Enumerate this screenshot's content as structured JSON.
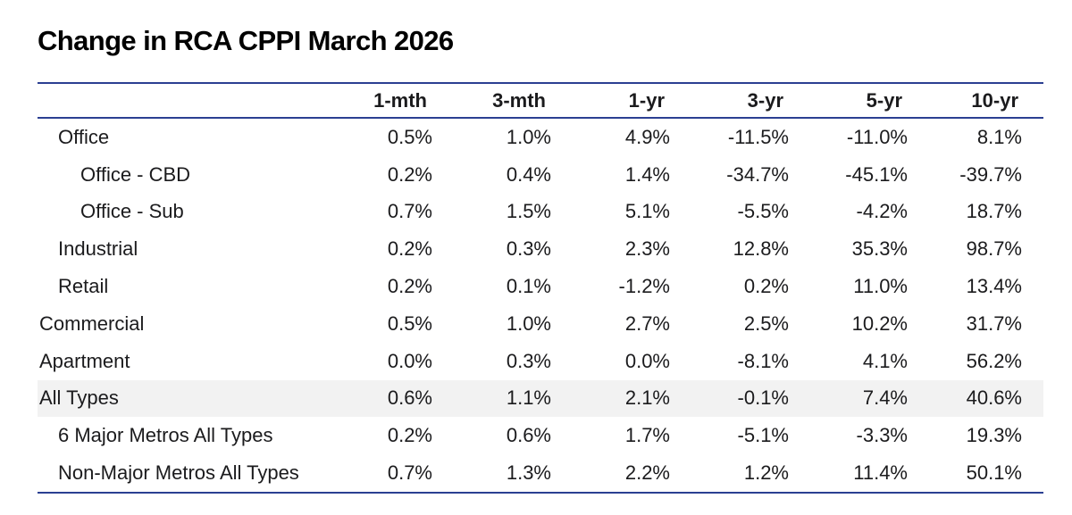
{
  "title": "Change in RCA CPPI March 2026",
  "colors": {
    "rule": "#2b3f92",
    "highlight_row_bg": "#f2f2f2",
    "text": "#1b1b1d",
    "title": "#000000"
  },
  "table": {
    "columns": [
      "1-mth",
      "3-mth",
      "1-yr",
      "3-yr",
      "5-yr",
      "10-yr"
    ],
    "rows": [
      {
        "label": "Office",
        "indent": 1,
        "highlight": false,
        "values": [
          "0.5%",
          "1.0%",
          "4.9%",
          "-11.5%",
          "-11.0%",
          "8.1%"
        ]
      },
      {
        "label": "Office - CBD",
        "indent": 2,
        "highlight": false,
        "values": [
          "0.2%",
          "0.4%",
          "1.4%",
          "-34.7%",
          "-45.1%",
          "-39.7%"
        ]
      },
      {
        "label": "Office - Sub",
        "indent": 2,
        "highlight": false,
        "values": [
          "0.7%",
          "1.5%",
          "5.1%",
          "-5.5%",
          "-4.2%",
          "18.7%"
        ]
      },
      {
        "label": "Industrial",
        "indent": 1,
        "highlight": false,
        "values": [
          "0.2%",
          "0.3%",
          "2.3%",
          "12.8%",
          "35.3%",
          "98.7%"
        ]
      },
      {
        "label": "Retail",
        "indent": 1,
        "highlight": false,
        "values": [
          "0.2%",
          "0.1%",
          "-1.2%",
          "0.2%",
          "11.0%",
          "13.4%"
        ]
      },
      {
        "label": "Commercial",
        "indent": 0,
        "highlight": false,
        "values": [
          "0.5%",
          "1.0%",
          "2.7%",
          "2.5%",
          "10.2%",
          "31.7%"
        ]
      },
      {
        "label": "Apartment",
        "indent": 0,
        "highlight": false,
        "values": [
          "0.0%",
          "0.3%",
          "0.0%",
          "-8.1%",
          "4.1%",
          "56.2%"
        ]
      },
      {
        "label": "All Types",
        "indent": 0,
        "highlight": true,
        "values": [
          "0.6%",
          "1.1%",
          "2.1%",
          "-0.1%",
          "7.4%",
          "40.6%"
        ]
      },
      {
        "label": "6 Major Metros All Types",
        "indent": 1,
        "highlight": false,
        "values": [
          "0.2%",
          "0.6%",
          "1.7%",
          "-5.1%",
          "-3.3%",
          "19.3%"
        ]
      },
      {
        "label": "Non-Major Metros All Types",
        "indent": 1,
        "highlight": false,
        "values": [
          "0.7%",
          "1.3%",
          "2.2%",
          "1.2%",
          "11.4%",
          "50.1%"
        ]
      }
    ]
  },
  "chart_data": {
    "type": "table",
    "title": "Change in RCA CPPI March 2026",
    "columns": [
      "1-mth",
      "3-mth",
      "1-yr",
      "3-yr",
      "5-yr",
      "10-yr"
    ],
    "unit": "percent",
    "rows": [
      {
        "label": "Office",
        "values": [
          0.5,
          1.0,
          4.9,
          -11.5,
          -11.0,
          8.1
        ]
      },
      {
        "label": "Office - CBD",
        "values": [
          0.2,
          0.4,
          1.4,
          -34.7,
          -45.1,
          -39.7
        ]
      },
      {
        "label": "Office - Sub",
        "values": [
          0.7,
          1.5,
          5.1,
          -5.5,
          -4.2,
          18.7
        ]
      },
      {
        "label": "Industrial",
        "values": [
          0.2,
          0.3,
          2.3,
          12.8,
          35.3,
          98.7
        ]
      },
      {
        "label": "Retail",
        "values": [
          0.2,
          0.1,
          -1.2,
          0.2,
          11.0,
          13.4
        ]
      },
      {
        "label": "Commercial",
        "values": [
          0.5,
          1.0,
          2.7,
          2.5,
          10.2,
          31.7
        ]
      },
      {
        "label": "Apartment",
        "values": [
          0.0,
          0.3,
          0.0,
          -8.1,
          4.1,
          56.2
        ]
      },
      {
        "label": "All Types",
        "values": [
          0.6,
          1.1,
          2.1,
          -0.1,
          7.4,
          40.6
        ]
      },
      {
        "label": "6 Major Metros All Types",
        "values": [
          0.2,
          0.6,
          1.7,
          -5.1,
          -3.3,
          19.3
        ]
      },
      {
        "label": "Non-Major Metros All Types",
        "values": [
          0.7,
          1.3,
          2.2,
          1.2,
          11.4,
          50.1
        ]
      }
    ]
  }
}
